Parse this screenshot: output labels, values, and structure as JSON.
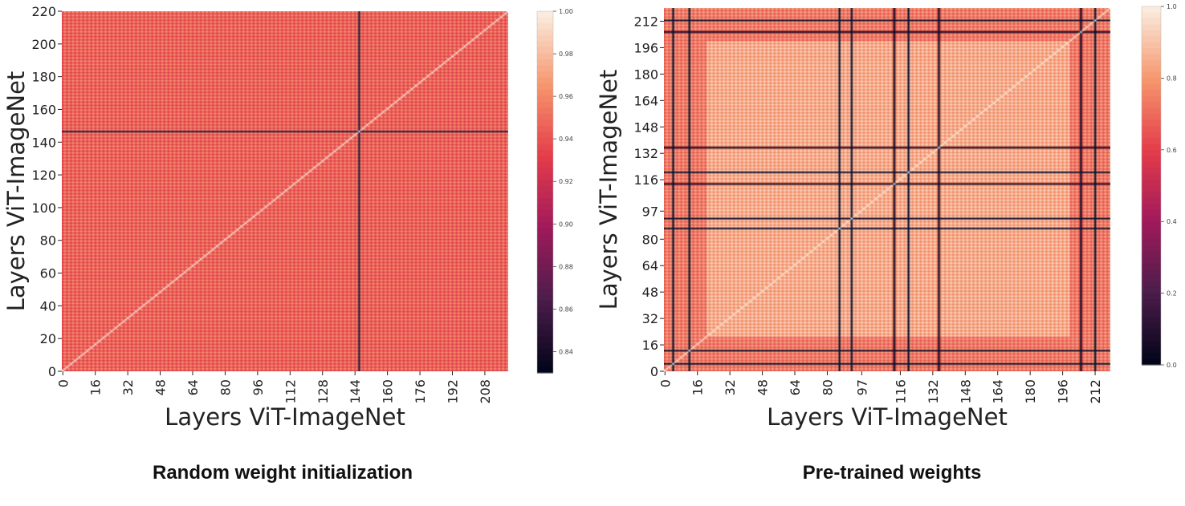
{
  "chart_data": [
    {
      "type": "heatmap",
      "caption": "Random weight initialization",
      "xlabel": "Layers ViT-ImageNet",
      "ylabel": "Layers ViT-ImageNet",
      "n": 220,
      "x_ticks": [
        "0",
        "16",
        "32",
        "48",
        "64",
        "80",
        "96",
        "112",
        "128",
        "144",
        "160",
        "176",
        "192",
        "208"
      ],
      "y_ticks": [
        "0",
        "20",
        "40",
        "60",
        "80",
        "100",
        "120",
        "140",
        "160",
        "180",
        "200",
        "220"
      ],
      "colorbar": {
        "min": 0.83,
        "max": 1.0,
        "ticks": [
          "0.84",
          "0.86",
          "0.88",
          "0.90",
          "0.92",
          "0.94",
          "0.96",
          "0.98",
          "1.00"
        ]
      },
      "colormap": "rocket",
      "pattern": {
        "base": [
          0.93,
          0.97
        ],
        "dark_lines": [
          146
        ],
        "dark_line_value": 0.85
      }
    },
    {
      "type": "heatmap",
      "caption": "Pre-trained weights",
      "xlabel": "Layers ViT-ImageNet",
      "ylabel": "Layers ViT-ImageNet",
      "n": 220,
      "x_ticks": [
        "0",
        "16",
        "32",
        "48",
        "64",
        "80",
        "97",
        "116",
        "132",
        "148",
        "164",
        "180",
        "196",
        "212"
      ],
      "y_ticks": [
        "0",
        "16",
        "32",
        "48",
        "64",
        "80",
        "97",
        "116",
        "132",
        "148",
        "164",
        "180",
        "196",
        "212"
      ],
      "colorbar": {
        "min": 0.0,
        "max": 1.0,
        "ticks": [
          "0.0",
          "0.2",
          "0.4",
          "0.6",
          "0.8",
          "1.0"
        ]
      },
      "colormap": "rocket",
      "pattern": {
        "base": [
          0.7,
          0.92
        ],
        "dark_lines": [
          4,
          12,
          86,
          92,
          113,
          120,
          135,
          205,
          212
        ],
        "dark_line_value": 0.05
      }
    }
  ]
}
